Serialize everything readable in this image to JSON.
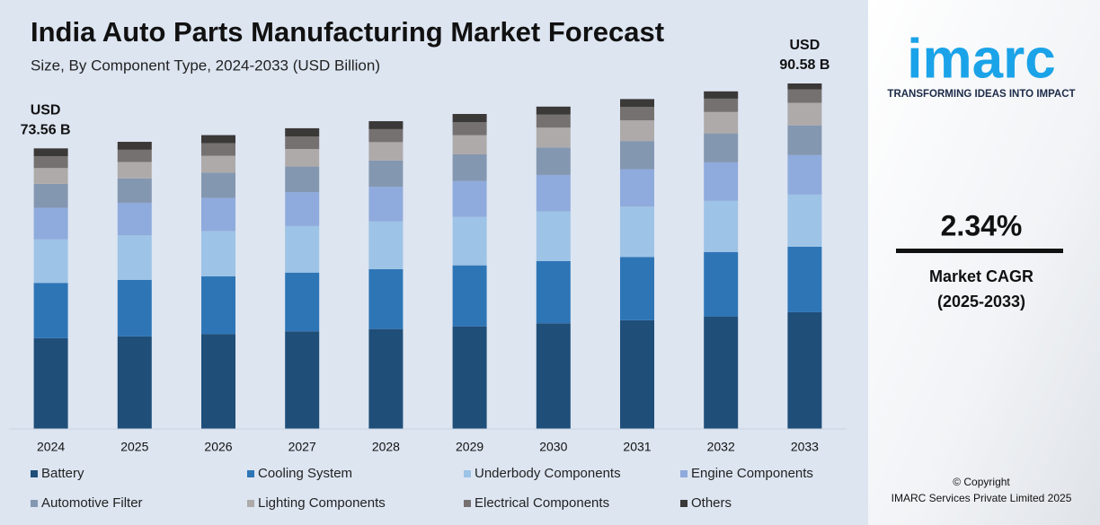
{
  "chart_data": {
    "type": "stacked-bar",
    "title": "India Auto Parts Manufacturing Market Forecast",
    "subtitle": "Size, By Component Type, 2024-2033 (USD Billion)",
    "categories": [
      "2024",
      "2025",
      "2026",
      "2027",
      "2028",
      "2029",
      "2030",
      "2031",
      "2032",
      "2033"
    ],
    "series": [
      {
        "name": "Battery",
        "color": "#1f4e79",
        "values": [
          23.8,
          24.3,
          24.9,
          25.6,
          26.2,
          26.9,
          27.7,
          28.5,
          29.5,
          30.6
        ]
      },
      {
        "name": "Cooling System",
        "color": "#2e75b6",
        "values": [
          14.5,
          14.8,
          15.1,
          15.4,
          15.7,
          16.0,
          16.3,
          16.6,
          16.9,
          17.2
        ]
      },
      {
        "name": "Underbody Components",
        "color": "#9dc3e6",
        "values": [
          11.4,
          11.7,
          11.9,
          12.2,
          12.5,
          12.7,
          13.0,
          13.2,
          13.4,
          13.65
        ]
      },
      {
        "name": "Engine Components",
        "color": "#8faadc",
        "values": [
          8.3,
          8.5,
          8.7,
          8.9,
          9.1,
          9.4,
          9.6,
          9.8,
          10.1,
          10.35
        ]
      },
      {
        "name": "Automotive Filter",
        "color": "#8497b0",
        "values": [
          6.25,
          6.4,
          6.6,
          6.7,
          6.9,
          7.0,
          7.2,
          7.4,
          7.6,
          7.8
        ]
      },
      {
        "name": "Lighting Components",
        "color": "#aeaaaa",
        "values": [
          4.15,
          4.3,
          4.4,
          4.6,
          4.8,
          5.0,
          5.2,
          5.4,
          5.6,
          5.9
        ]
      },
      {
        "name": "Electrical Components",
        "color": "#767171",
        "values": [
          3.1,
          3.2,
          3.3,
          3.3,
          3.4,
          3.4,
          3.4,
          3.5,
          3.5,
          3.5
        ]
      },
      {
        "name": "Others",
        "color": "#3b3838",
        "values": [
          2.06,
          2.08,
          2.14,
          2.14,
          2.09,
          2.18,
          2.11,
          2.09,
          1.91,
          1.58
        ]
      }
    ],
    "annotations": [
      {
        "text": [
          "USD",
          "73.56 B"
        ]
      },
      {
        "text": [
          "USD",
          "90.58 B"
        ]
      }
    ]
  },
  "sidebar": {
    "logo": "imarc",
    "tagline": "TRANSFORMING IDEAS INTO IMPACT",
    "cagr": "2.34%",
    "cagr_label": [
      "Market CAGR",
      "(2025-2033)"
    ],
    "copyright": [
      "© Copyright",
      "IMARC Services Private Limited 2025"
    ]
  }
}
